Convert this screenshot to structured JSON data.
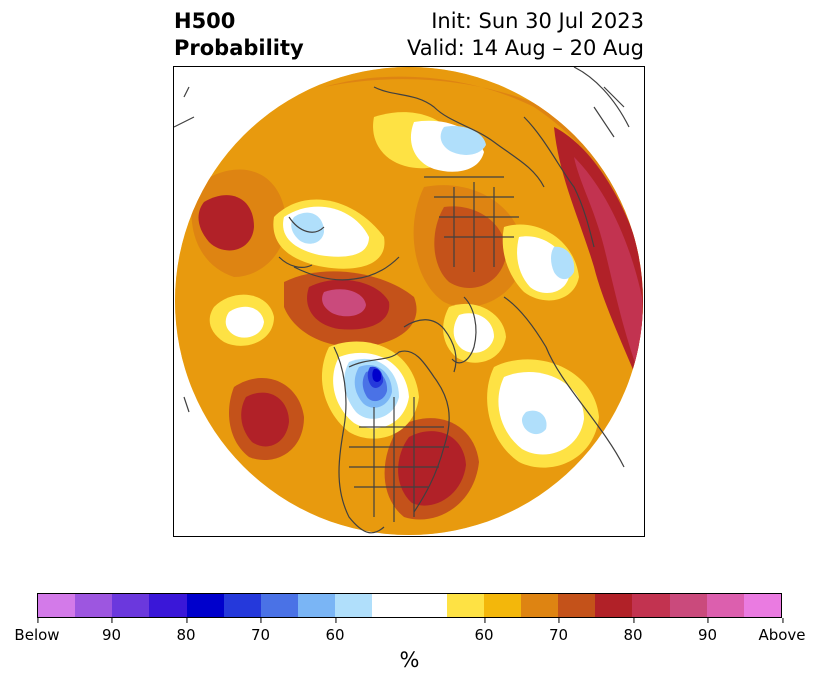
{
  "header": {
    "title_line1": "H500",
    "title_line2": "Probability",
    "init_label": "Init: Sun 30 Jul 2023",
    "valid_label": "Valid: 14 Aug – 20 Aug"
  },
  "map": {
    "projection": "north-polar-stereographic",
    "coastline_color": "#404040"
  },
  "colorbar": {
    "unit": "%",
    "colors": [
      "#d37ae9",
      "#9d56e0",
      "#6b38dd",
      "#3a17d8",
      "#0000cc",
      "#2539db",
      "#4a72e6",
      "#7ab5f5",
      "#b0dffb",
      "#ffffff",
      "#fee244",
      "#f3b70b",
      "#de8412",
      "#c4521a",
      "#b12128",
      "#c23350",
      "#ca4a7c",
      "#dc5fae",
      "#ea7be1"
    ],
    "ticks": [
      "Below",
      "90",
      "80",
      "70",
      "60",
      "60",
      "70",
      "80",
      "90",
      "Above"
    ]
  }
}
